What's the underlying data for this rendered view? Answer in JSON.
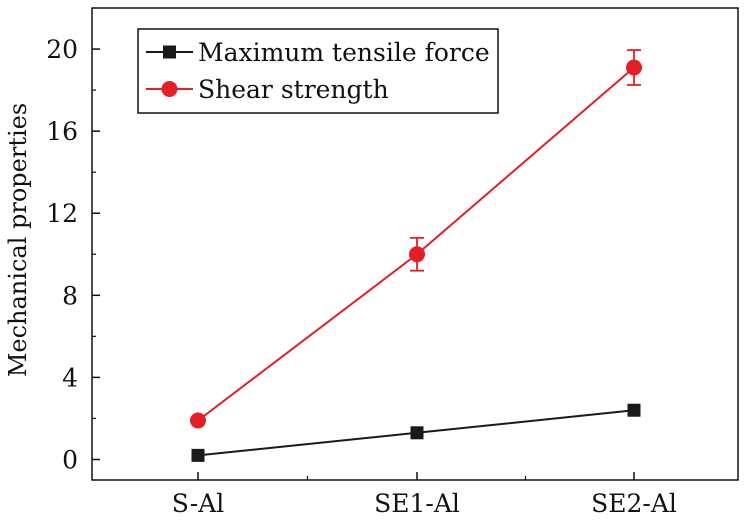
{
  "chart_data": {
    "type": "line",
    "title": "",
    "xlabel": "",
    "ylabel": "Mechanical properties",
    "categories": [
      "S-Al",
      "SE1-Al",
      "SE2-Al"
    ],
    "ylim": [
      -1,
      22
    ],
    "yticks": [
      "0",
      "4",
      "8",
      "12",
      "16",
      "20"
    ],
    "grid": false,
    "legend_position": "top-left",
    "series": [
      {
        "name": "Maximum tensile force",
        "values": [
          0.2,
          1.3,
          2.4
        ],
        "marker": "square",
        "color": "#1a1a1a"
      },
      {
        "name": "Shear strength",
        "values": [
          1.9,
          10.0,
          19.1
        ],
        "error": [
          0.1,
          0.8,
          0.85
        ],
        "marker": "circle",
        "color": "#e31e24"
      }
    ]
  }
}
